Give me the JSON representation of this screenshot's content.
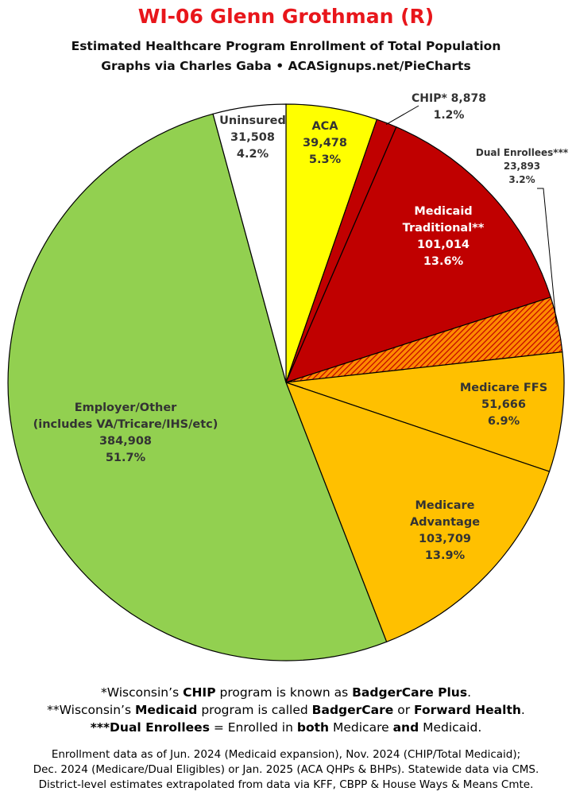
{
  "title": "WI-06 Glenn Grothman (R)",
  "subtitle_lines": [
    "Estimated Healthcare Program Enrollment of Total Population",
    "Graphs via Charles Gaba  •  ACASignups.net/PieCharts"
  ],
  "chart_data": {
    "type": "pie",
    "slices": [
      {
        "name": "ACA",
        "value": 39478,
        "value_label": "39,478",
        "percent": "5.3%",
        "color": "#ffff00"
      },
      {
        "name": "CHIP*",
        "value": 8878,
        "value_label": "8,878",
        "percent": "1.2%",
        "color": "#c00000"
      },
      {
        "name": "Medicaid Traditional**",
        "value": 101014,
        "value_label": "101,014",
        "percent": "13.6%",
        "color": "#c00000"
      },
      {
        "name": "Dual Enrollees***",
        "value": 23893,
        "value_label": "23,893",
        "percent": "3.2%",
        "color": "#c00000",
        "pattern": "hatched-orange"
      },
      {
        "name": "Medicare FFS",
        "value": 51666,
        "value_label": "51,666",
        "percent": "6.9%",
        "color": "#ffc000"
      },
      {
        "name": "Medicare Advantage",
        "value": 103709,
        "value_label": "103,709",
        "percent": "13.9%",
        "color": "#ffc000"
      },
      {
        "name": "Employer/Other (includes VA/Tricare/IHS/etc)",
        "value": 384908,
        "value_label": "384,908",
        "percent": "51.7%",
        "color": "#92d050"
      },
      {
        "name": "Uninsured",
        "value": 31508,
        "value_label": "31,508",
        "percent": "4.2%",
        "color": "#ffffff"
      }
    ]
  },
  "slice_labels": [
    {
      "lines": [
        "ACA",
        "39,478",
        "5.3%"
      ],
      "color": "#333333"
    },
    {
      "lines": [
        "CHIP* 8,878",
        "1.2%"
      ],
      "color": "#333333"
    },
    {
      "lines": [
        "Medicaid",
        "Traditional**",
        "101,014",
        "13.6%"
      ],
      "color": "#ffffff"
    },
    {
      "lines": [
        "Dual Enrollees***",
        "23,893",
        "3.2%"
      ],
      "color": "#333333"
    },
    {
      "lines": [
        "Medicare FFS",
        "51,666",
        "6.9%"
      ],
      "color": "#333333"
    },
    {
      "lines": [
        "Medicare",
        "Advantage",
        "103,709",
        "13.9%"
      ],
      "color": "#333333"
    },
    {
      "lines": [
        "Employer/Other",
        "(includes VA/Tricare/IHS/etc)",
        "384,908",
        "51.7%"
      ],
      "color": "#333333"
    },
    {
      "lines": [
        "Uninsured",
        "31,508",
        "4.2%"
      ],
      "color": "#333333"
    }
  ],
  "notes": {
    "chip_pre": "*Wisconsin’s ",
    "chip_bold": "CHIP",
    "chip_mid": " program is known as ",
    "chip_name": "BadgerCare Plus",
    "chip_end": ".",
    "medicaid_pre": "**Wisconsin’s ",
    "medicaid_bold": "Medicaid",
    "medicaid_mid": " program is called ",
    "medicaid_name1": "BadgerCare",
    "medicaid_or": " or ",
    "medicaid_name2": "Forward Health",
    "medicaid_end": ".",
    "dual_bold": "***Dual Enrollees",
    "dual_mid": " = Enrolled in ",
    "dual_both": "both",
    "dual_medicare": " Medicare ",
    "dual_and": "and",
    "dual_end": " Medicaid."
  },
  "footer_lines": [
    "Enrollment data as of Jun. 2024 (Medicaid expansion), Nov. 2024 (CHIP/Total Medicaid);",
    "Dec. 2024 (Medicare/Dual Eligibles) or Jan. 2025 (ACA QHPs & BHPs). Statewide data via CMS.",
    "District-level estimates extrapolated from data via KFF, CBPP & House Ways & Means Cmte."
  ]
}
